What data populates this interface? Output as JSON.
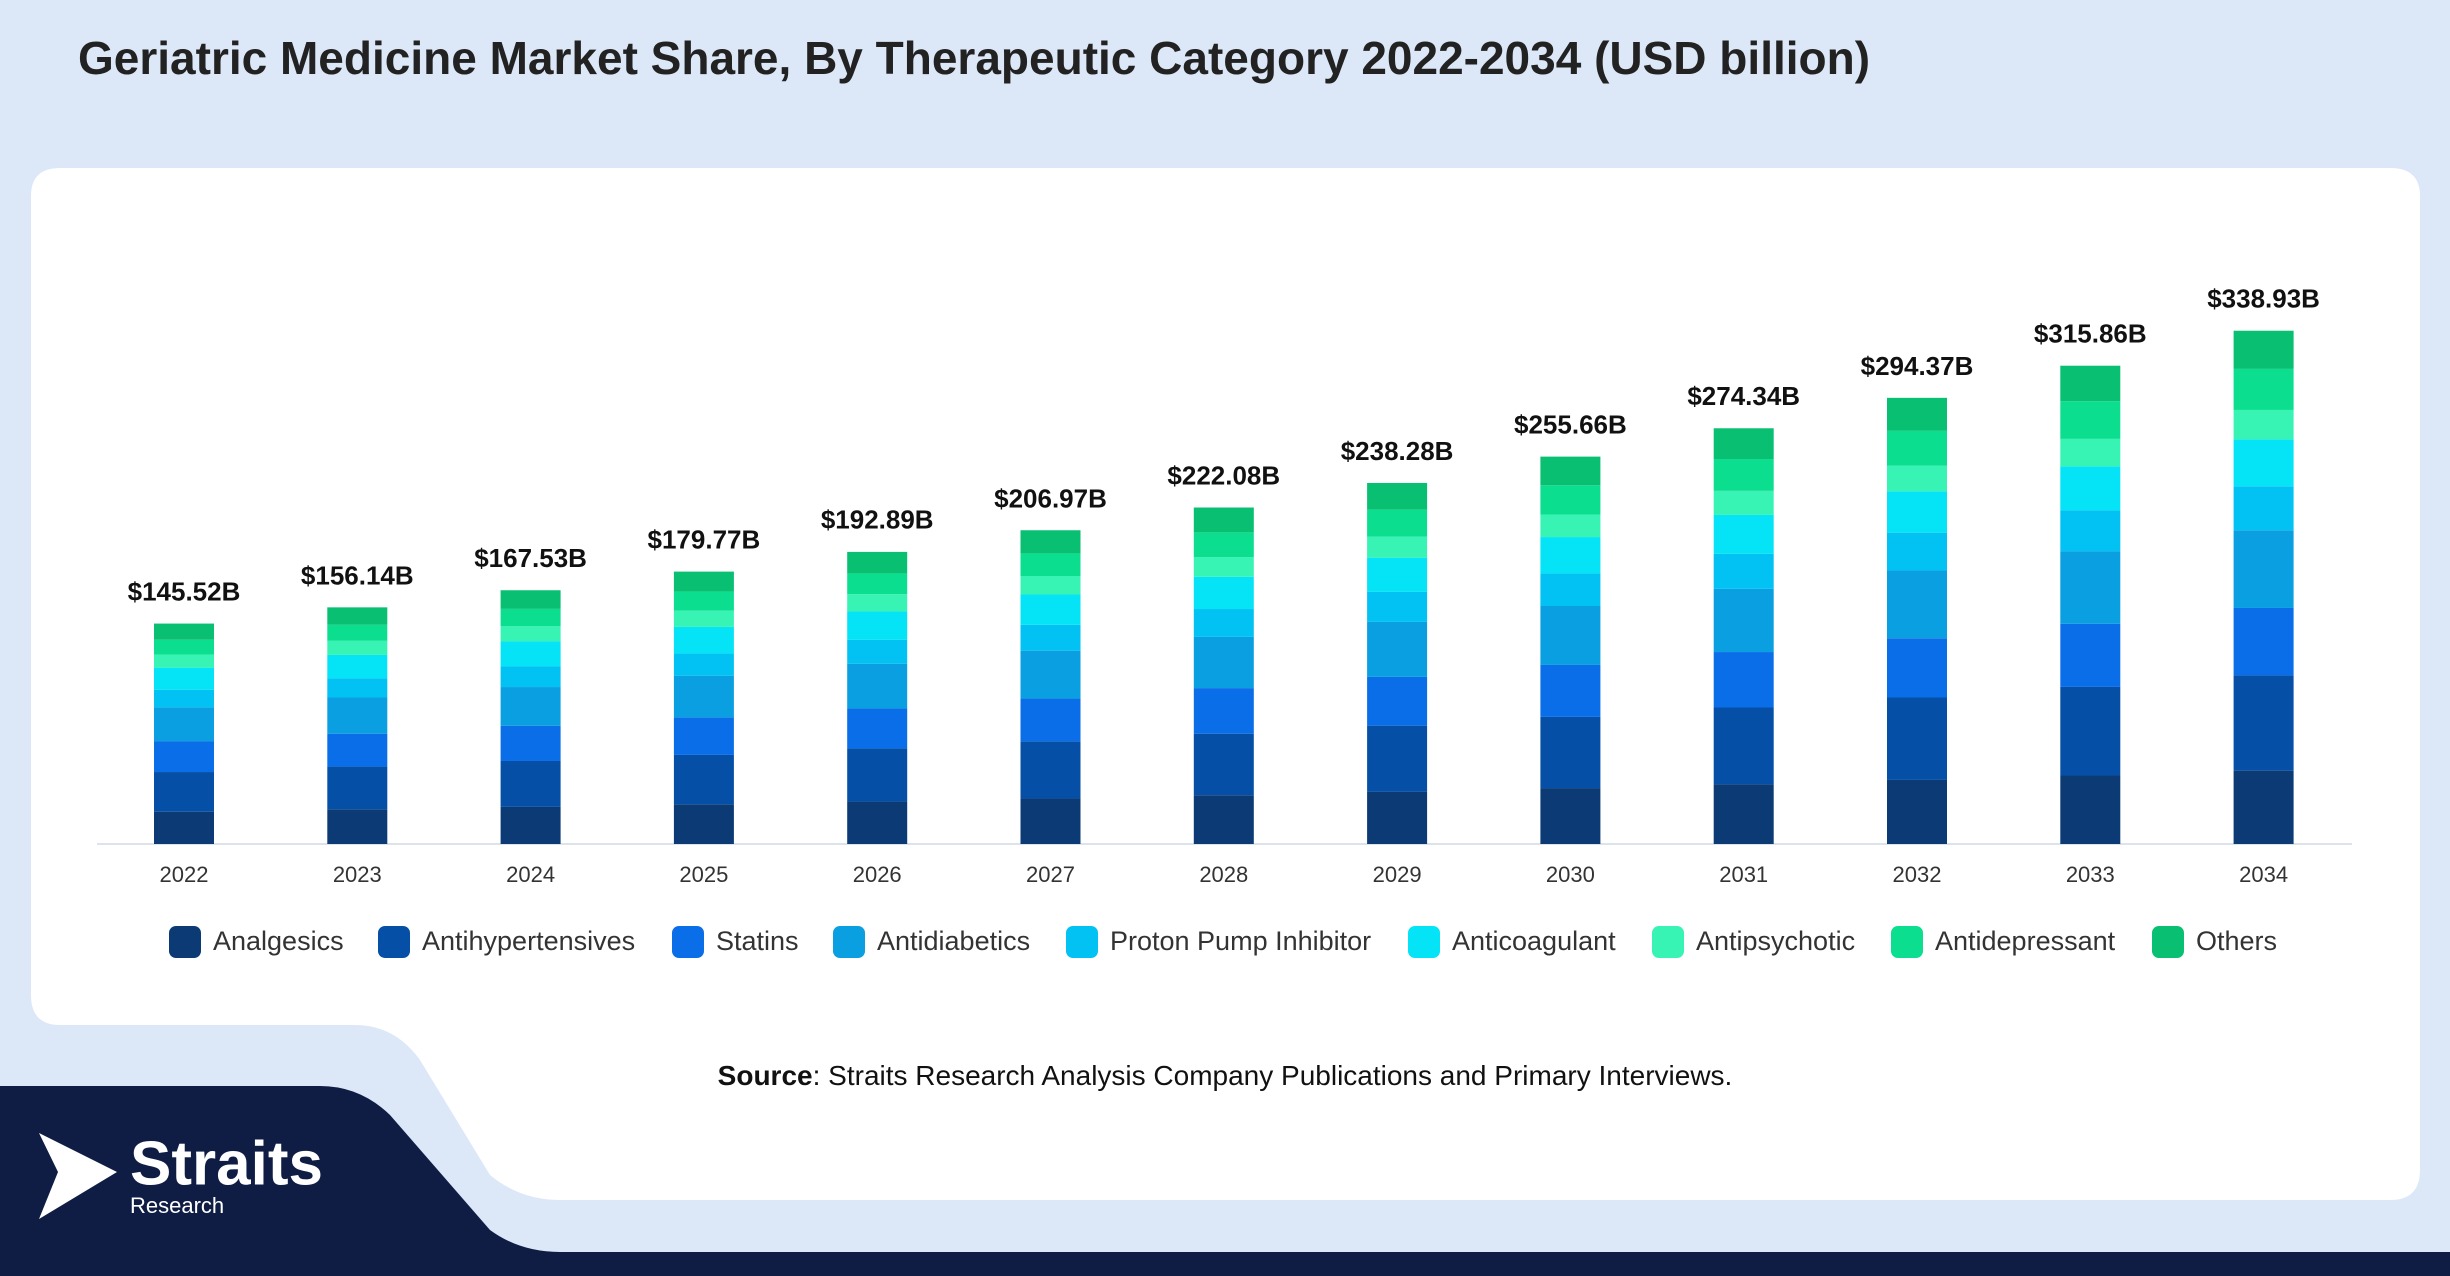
{
  "chart_data": {
    "type": "bar",
    "stacked": true,
    "title": "Geriatric Medicine Market Share, By Therapeutic Category 2022-2034 (USD billion)",
    "categories": [
      "2022",
      "2023",
      "2024",
      "2025",
      "2026",
      "2027",
      "2028",
      "2029",
      "2030",
      "2031",
      "2032",
      "2033",
      "2034"
    ],
    "series": [
      {
        "name": "Analgesics",
        "color": "#0b3a74",
        "values": [
          21.3,
          22.9,
          24.5,
          26.2,
          28.0,
          30.0,
          32.2,
          34.4,
          36.9,
          39.5,
          42.3,
          45.2,
          48.4
        ]
      },
      {
        "name": "Antihypertensives",
        "color": "#0550a6",
        "values": [
          26.2,
          28.2,
          30.3,
          32.6,
          35.1,
          37.8,
          40.6,
          43.7,
          47.0,
          50.6,
          54.4,
          58.5,
          62.9
        ]
      },
      {
        "name": "Statins",
        "color": "#0a6ee8",
        "values": [
          20.4,
          21.7,
          23.2,
          24.8,
          26.4,
          28.2,
          30.1,
          32.2,
          34.3,
          36.6,
          39.1,
          41.7,
          44.5
        ]
      },
      {
        "name": "Antidiabetics",
        "color": "#0a9fe0",
        "values": [
          22.3,
          23.9,
          25.6,
          27.5,
          29.5,
          31.6,
          33.8,
          36.3,
          38.9,
          41.7,
          44.7,
          47.9,
          51.3
        ]
      },
      {
        "name": "Proton Pump Inhibitor",
        "color": "#02c2f4",
        "values": [
          11.6,
          12.6,
          13.6,
          14.6,
          15.8,
          17.1,
          18.4,
          19.8,
          21.4,
          23.1,
          25.0,
          26.9,
          29.0
        ]
      },
      {
        "name": "Anticoagulant",
        "color": "#05e4f6",
        "values": [
          14.6,
          15.5,
          16.5,
          17.6,
          18.7,
          20.0,
          21.3,
          22.6,
          24.1,
          25.7,
          27.3,
          29.1,
          31.0
        ]
      },
      {
        "name": "Antipsychotic",
        "color": "#38f4b4",
        "values": [
          8.7,
          9.3,
          10.0,
          10.7,
          11.4,
          12.2,
          13.0,
          13.9,
          14.9,
          15.9,
          17.0,
          18.1,
          19.4
        ]
      },
      {
        "name": "Antidepressant",
        "color": "#0bdf8f",
        "values": [
          9.7,
          10.6,
          11.5,
          12.6,
          13.7,
          14.9,
          16.3,
          17.8,
          19.3,
          21.0,
          22.9,
          24.9,
          27.1
        ]
      },
      {
        "name": "Others",
        "color": "#09bf71",
        "values": [
          10.7,
          11.5,
          12.3,
          13.2,
          14.2,
          15.3,
          16.4,
          17.6,
          18.9,
          20.3,
          21.8,
          23.4,
          25.2
        ]
      }
    ],
    "totals": {
      "values": [
        145.52,
        156.14,
        167.53,
        179.77,
        192.89,
        206.97,
        222.08,
        238.28,
        255.66,
        274.34,
        294.37,
        315.86,
        338.93
      ],
      "value_labels": [
        "$145.52B",
        "$156.14B",
        "$167.53B",
        "$179.77B",
        "$192.89B",
        "$206.97B",
        "$222.08B",
        "$238.28B",
        "$255.66B",
        "$274.34B",
        "$294.37B",
        "$315.86B",
        "$338.93B"
      ]
    }
  },
  "source": {
    "label": "Source",
    "text": ": Straits Research Analysis Company Publications and Primary Interviews."
  },
  "logo": {
    "name": "Straits",
    "sub": "Research"
  }
}
